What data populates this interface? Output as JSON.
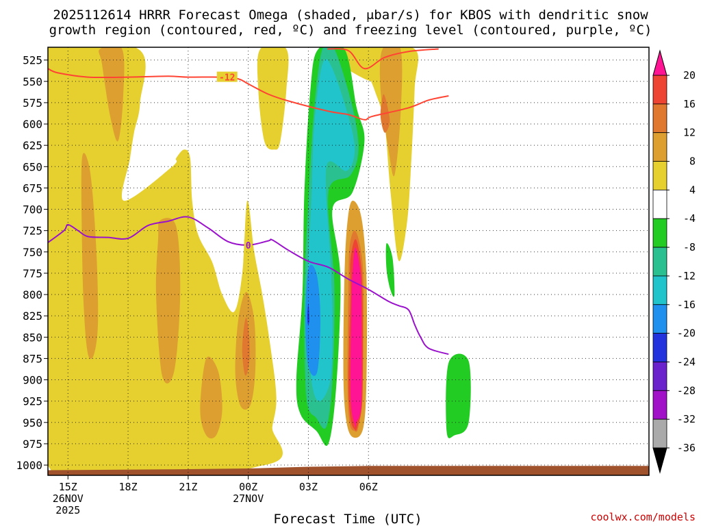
{
  "chart_data": {
    "type": "contour",
    "title_lines": [
      "2025112614 HRRR Forecast Omega (shaded, μbar/s) for KBOS with dendritic snow",
      "growth region (contoured, red, ºC) and freezing level (contoured, purple, ºC)"
    ],
    "xlabel": "Forecast Time (UTC)",
    "credit": "coolwx.com/models",
    "x_range_hours": [
      -1,
      29
    ],
    "x_ticks": [
      {
        "hour": 0,
        "lines": [
          "15Z",
          "26NOV",
          "2025"
        ]
      },
      {
        "hour": 3,
        "lines": [
          "18Z"
        ]
      },
      {
        "hour": 6,
        "lines": [
          "21Z"
        ]
      },
      {
        "hour": 9,
        "lines": [
          "00Z",
          "27NOV"
        ]
      },
      {
        "hour": 12,
        "lines": [
          "03Z"
        ]
      },
      {
        "hour": 15,
        "lines": [
          "06Z"
        ]
      }
    ],
    "y_range_mb": [
      510,
      1012
    ],
    "y_ticks": [
      525,
      550,
      575,
      600,
      625,
      650,
      675,
      700,
      725,
      750,
      775,
      800,
      825,
      850,
      875,
      900,
      925,
      950,
      975,
      1000
    ],
    "colorbar": {
      "labels": [
        "20",
        "16",
        "12",
        "8",
        "4",
        "-4",
        "-8",
        "-12",
        "-16",
        "-20",
        "-24",
        "-28",
        "-32",
        "-36"
      ],
      "colors": [
        "#ff1493",
        "#ee4433",
        "#e07830",
        "#dda030",
        "#e5d030",
        "#ffffff",
        "#22cc22",
        "#2ac090",
        "#22c4cc",
        "#2090ee",
        "#2233dd",
        "#6a22cc",
        "#a011c8",
        "#aaaaaa",
        "#000000"
      ]
    },
    "omega_regions": [
      {
        "level": "4..8",
        "color": "#e5d030",
        "points": [
          [
            -1,
            512
          ],
          [
            3.5,
            512
          ],
          [
            3.6,
            575
          ],
          [
            3.3,
            610
          ],
          [
            3.1,
            640
          ],
          [
            2.8,
            690
          ],
          [
            5.2,
            650
          ],
          [
            5.4,
            640
          ],
          [
            5.8,
            630
          ],
          [
            6.1,
            640
          ],
          [
            6.2,
            690
          ],
          [
            6.5,
            730
          ],
          [
            7.2,
            762
          ],
          [
            7.7,
            800
          ],
          [
            8.3,
            820
          ],
          [
            8.7,
            775
          ],
          [
            8.95,
            690
          ],
          [
            9.3,
            750
          ],
          [
            9.7,
            800
          ],
          [
            10.1,
            860
          ],
          [
            10.4,
            920
          ],
          [
            10.2,
            955
          ],
          [
            9.8,
            1000
          ],
          [
            -1,
            1000
          ]
        ]
      },
      {
        "level": "4..8",
        "color": "#e5d030",
        "points": [
          [
            9.6,
            512
          ],
          [
            10.9,
            512
          ],
          [
            10.9,
            560
          ],
          [
            10.6,
            620
          ],
          [
            10.3,
            630
          ],
          [
            9.8,
            620
          ],
          [
            9.5,
            560
          ]
        ]
      },
      {
        "level": "4..8",
        "color": "#e5d030",
        "points": [
          [
            14.9,
            512
          ],
          [
            17.3,
            512
          ],
          [
            17.3,
            560
          ],
          [
            17.1,
            660
          ],
          [
            16.9,
            720
          ],
          [
            16.5,
            760
          ],
          [
            16.1,
            680
          ],
          [
            15.8,
            600
          ],
          [
            15.3,
            560
          ],
          [
            14.8,
            530
          ]
        ]
      },
      {
        "level": "4..8",
        "color": "#e5d030",
        "points": [
          [
            12.8,
            512
          ],
          [
            15.6,
            512
          ],
          [
            15.2,
            550
          ]
        ]
      },
      {
        "level": "8..12",
        "color": "#dda030",
        "points": [
          [
            1.6,
            512
          ],
          [
            2.7,
            512
          ],
          [
            2.75,
            570
          ],
          [
            2.5,
            620
          ],
          [
            2.1,
            590
          ],
          [
            1.7,
            530
          ]
        ]
      },
      {
        "level": "8..12",
        "color": "#dda030",
        "points": [
          [
            0.7,
            640
          ],
          [
            1.1,
            655
          ],
          [
            1.4,
            740
          ],
          [
            1.5,
            830
          ],
          [
            1.3,
            870
          ],
          [
            1.0,
            870
          ],
          [
            0.8,
            820
          ],
          [
            0.7,
            740
          ]
        ]
      },
      {
        "level": "8..12",
        "color": "#dda030",
        "points": [
          [
            4.6,
            713
          ],
          [
            5.4,
            720
          ],
          [
            5.6,
            800
          ],
          [
            5.3,
            890
          ],
          [
            4.7,
            895
          ],
          [
            4.4,
            800
          ],
          [
            4.5,
            735
          ]
        ]
      },
      {
        "level": "8..12",
        "color": "#dda030",
        "points": [
          [
            8.9,
            797
          ],
          [
            9.3,
            830
          ],
          [
            9.35,
            890
          ],
          [
            9.1,
            930
          ],
          [
            8.6,
            930
          ],
          [
            8.35,
            890
          ],
          [
            8.5,
            830
          ]
        ]
      },
      {
        "level": "8..12",
        "color": "#dda030",
        "points": [
          [
            6.9,
            875
          ],
          [
            7.5,
            890
          ],
          [
            7.7,
            935
          ],
          [
            7.4,
            965
          ],
          [
            6.9,
            965
          ],
          [
            6.6,
            935
          ]
        ]
      },
      {
        "level": "8..12",
        "color": "#dda030",
        "points": [
          [
            15.7,
            512
          ],
          [
            16.6,
            512
          ],
          [
            16.6,
            590
          ],
          [
            16.3,
            660
          ],
          [
            16.0,
            630
          ],
          [
            15.6,
            560
          ]
        ]
      },
      {
        "level": "12..16",
        "color": "#e07830",
        "points": [
          [
            8.9,
            827
          ],
          [
            9.05,
            850
          ],
          [
            9.05,
            880
          ],
          [
            8.85,
            895
          ],
          [
            8.7,
            870
          ],
          [
            8.75,
            845
          ]
        ]
      },
      {
        "level": "12..16",
        "color": "#e07830",
        "points": [
          [
            15.75,
            565
          ],
          [
            16.0,
            585
          ],
          [
            16.05,
            600
          ],
          [
            15.8,
            610
          ],
          [
            15.6,
            590
          ]
        ]
      },
      {
        "level": "-4..-8",
        "color": "#22cc22",
        "points": [
          [
            12.5,
            512
          ],
          [
            13.8,
            512
          ],
          [
            14.4,
            580
          ],
          [
            14.8,
            620
          ],
          [
            14.2,
            680
          ],
          [
            13.2,
            700
          ],
          [
            13.6,
            780
          ],
          [
            13.4,
            905
          ],
          [
            13.0,
            975
          ],
          [
            12.4,
            960
          ],
          [
            11.6,
            940
          ],
          [
            11.4,
            900
          ],
          [
            11.7,
            800
          ],
          [
            11.8,
            680
          ],
          [
            12.1,
            560
          ]
        ]
      },
      {
        "level": "-4..-8",
        "color": "#22cc22",
        "points": [
          [
            15.9,
            740
          ],
          [
            16.2,
            757
          ],
          [
            16.3,
            800
          ],
          [
            16.1,
            795
          ],
          [
            15.9,
            770
          ]
        ]
      },
      {
        "level": "-4..-8",
        "color": "#22cc22",
        "points": [
          [
            19.0,
            880
          ],
          [
            20.0,
            878
          ],
          [
            20.0,
            950
          ],
          [
            19.3,
            965
          ],
          [
            18.9,
            960
          ]
        ]
      },
      {
        "level": "-8..-12",
        "color": "#2ac090",
        "points": [
          [
            12.7,
            512
          ],
          [
            13.3,
            512
          ],
          [
            14.2,
            580
          ],
          [
            14.5,
            630
          ],
          [
            14.1,
            660
          ],
          [
            13.0,
            680
          ],
          [
            13.3,
            790
          ],
          [
            13.2,
            900
          ],
          [
            12.9,
            955
          ],
          [
            12.4,
            945
          ],
          [
            11.9,
            920
          ],
          [
            11.8,
            800
          ],
          [
            12.0,
            690
          ],
          [
            12.3,
            580
          ]
        ]
      },
      {
        "level": "-12..-16",
        "color": "#22c4cc",
        "points": [
          [
            12.7,
            530
          ],
          [
            13.2,
            535
          ],
          [
            14.1,
            600
          ],
          [
            14.3,
            635
          ],
          [
            13.9,
            655
          ],
          [
            12.9,
            650
          ],
          [
            13.1,
            760
          ],
          [
            13.2,
            830
          ],
          [
            13.1,
            900
          ],
          [
            12.5,
            925
          ],
          [
            12.1,
            890
          ],
          [
            11.95,
            790
          ],
          [
            12.15,
            690
          ],
          [
            12.3,
            600
          ]
        ]
      },
      {
        "level": "-16..-20",
        "color": "#2090ee",
        "points": [
          [
            12.0,
            770
          ],
          [
            12.4,
            775
          ],
          [
            12.6,
            825
          ],
          [
            12.45,
            890
          ],
          [
            12.0,
            885
          ],
          [
            11.85,
            830
          ]
        ]
      },
      {
        "level": "-20..-24",
        "color": "#2233dd",
        "points": [
          [
            12.0,
            810
          ],
          [
            12.05,
            830
          ],
          [
            11.98,
            835
          ],
          [
            11.95,
            825
          ]
        ]
      },
      {
        "level": "8..12",
        "color": "#dda030",
        "points": [
          [
            14.2,
            690
          ],
          [
            14.65,
            710
          ],
          [
            14.9,
            780
          ],
          [
            14.9,
            900
          ],
          [
            14.75,
            955
          ],
          [
            14.35,
            968
          ],
          [
            13.95,
            955
          ],
          [
            13.75,
            900
          ],
          [
            13.8,
            780
          ],
          [
            13.95,
            715
          ]
        ]
      },
      {
        "level": "12..16",
        "color": "#e07830",
        "points": [
          [
            14.3,
            725
          ],
          [
            14.6,
            745
          ],
          [
            14.75,
            790
          ],
          [
            14.7,
            910
          ],
          [
            14.5,
            955
          ],
          [
            14.3,
            960
          ],
          [
            14.05,
            950
          ],
          [
            13.95,
            900
          ],
          [
            14.0,
            790
          ],
          [
            14.05,
            745
          ]
        ]
      },
      {
        "level": "16..20",
        "color": "#ee4433",
        "points": [
          [
            14.35,
            735
          ],
          [
            14.6,
            760
          ],
          [
            14.7,
            800
          ],
          [
            14.7,
            920
          ],
          [
            14.45,
            955
          ],
          [
            14.3,
            958
          ],
          [
            14.1,
            945
          ],
          [
            14.0,
            900
          ],
          [
            14.1,
            800
          ],
          [
            14.1,
            760
          ]
        ]
      },
      {
        "level": ">20",
        "color": "#ff1493",
        "points": [
          [
            14.35,
            745
          ],
          [
            14.6,
            775
          ],
          [
            14.65,
            810
          ],
          [
            14.65,
            925
          ],
          [
            14.4,
            950
          ],
          [
            14.35,
            955
          ],
          [
            14.15,
            935
          ],
          [
            14.1,
            900
          ],
          [
            14.15,
            810
          ],
          [
            14.2,
            775
          ]
        ]
      }
    ],
    "dgz_lines": [
      {
        "label": "-12",
        "points": [
          [
            -1,
            535
          ],
          [
            -0.5,
            540
          ],
          [
            1.0,
            545
          ],
          [
            3.0,
            545
          ],
          [
            5.0,
            544
          ],
          [
            6.0,
            545
          ],
          [
            7.6,
            545
          ],
          [
            8.5,
            547
          ],
          [
            9.0,
            553
          ],
          [
            10.0,
            565
          ],
          [
            11.0,
            573
          ],
          [
            13.0,
            585
          ],
          [
            14.0,
            589
          ],
          [
            14.8,
            595
          ],
          [
            15.2,
            591
          ],
          [
            17.0,
            581
          ],
          [
            18.0,
            572
          ],
          [
            19.0,
            567
          ]
        ]
      },
      {
        "label": "",
        "points": [
          [
            12.95,
            512
          ],
          [
            14.0,
            514
          ],
          [
            14.8,
            535
          ],
          [
            15.8,
            522
          ],
          [
            17.0,
            515
          ],
          [
            18.5,
            512
          ]
        ]
      }
    ],
    "dgz_label_at": [
      7.5,
      545
    ],
    "freezing_level": {
      "label": "0",
      "label_at": [
        9.0,
        742
      ],
      "points": [
        [
          -1,
          739
        ],
        [
          -0.2,
          725
        ],
        [
          0.0,
          718
        ],
        [
          0.5,
          725
        ],
        [
          1.0,
          732
        ],
        [
          2.0,
          733
        ],
        [
          3.0,
          734
        ],
        [
          4.0,
          719
        ],
        [
          5.0,
          714
        ],
        [
          6.0,
          709
        ],
        [
          7.0,
          722
        ],
        [
          8.0,
          738
        ],
        [
          9.0,
          742
        ],
        [
          10.0,
          737
        ],
        [
          10.2,
          736
        ],
        [
          11.0,
          748
        ],
        [
          12.0,
          761
        ],
        [
          13.0,
          768
        ],
        [
          14.0,
          782
        ],
        [
          15.0,
          794
        ],
        [
          16.0,
          808
        ],
        [
          16.5,
          813
        ],
        [
          17.0,
          818
        ],
        [
          17.3,
          835
        ],
        [
          17.6,
          850
        ],
        [
          18.0,
          863
        ],
        [
          19.0,
          870
        ]
      ]
    },
    "terrain": {
      "color": "#a0522d"
    }
  }
}
